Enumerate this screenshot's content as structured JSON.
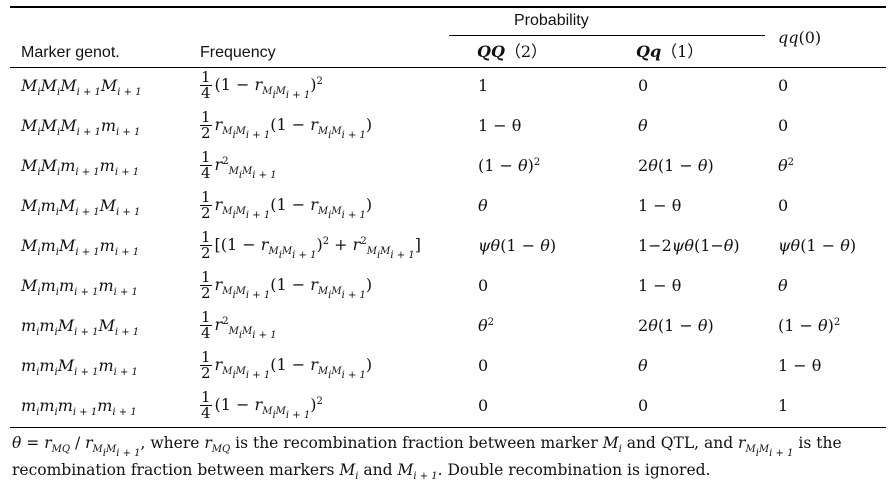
{
  "headers": {
    "marker": "Marker genot.",
    "frequency": "Frequency",
    "probability": "Probability",
    "qq_full": "QQ（2）",
    "qq_sym": "QQ",
    "qq_val": "（2）",
    "qh_sym": "Qq",
    "qh_val": "（1）",
    "q0_sym": "qq",
    "q0_val": "(0)"
  },
  "rows": [
    {
      "genotype": "MiMiMi+1Mi+1",
      "frequency": "1/4 (1 − rMiMi+1)^2",
      "QQ": "1",
      "Qq": "0",
      "qq": "0"
    },
    {
      "genotype": "MiMiMi+1mi+1",
      "frequency": "1/2 rMiMi+1 (1 − rMiMi+1)",
      "QQ": "1 − θ",
      "Qq": "θ",
      "qq": "0"
    },
    {
      "genotype": "MiMimi+1mi+1",
      "frequency": "1/4 r^2MiMi+1",
      "QQ": "(1 − θ)^2",
      "Qq": "2θ(1 − θ)",
      "qq": "θ^2"
    },
    {
      "genotype": "MimiMi+1Mi+1",
      "frequency": "1/2 rMiMi+1 (1 − rMiMi+1)",
      "QQ": "θ",
      "Qq": "1 − θ",
      "qq": "0"
    },
    {
      "genotype": "MimiMi+1mi+1",
      "frequency": "1/2 [(1 − rMiMi+1)^2 + r^2MiMi+1]",
      "QQ": "ψθ(1 − θ)",
      "Qq": "1−2ψθ(1−θ)",
      "qq": "ψθ(1 − θ)"
    },
    {
      "genotype": "Mimimi+1mi+1",
      "frequency": "1/2 rMiMi+1 (1 − rMiMi+1)",
      "QQ": "0",
      "Qq": "1 − θ",
      "qq": "θ"
    },
    {
      "genotype": "mimiMi+1Mi+1",
      "frequency": "1/4 r^2MiMi+1",
      "QQ": "θ^2",
      "Qq": "2θ(1 − θ)",
      "qq": "(1 − θ)^2"
    },
    {
      "genotype": "mimiMi+1mi+1",
      "frequency": "1/2 rMiMi+1 (1 − rMiMi+1)",
      "QQ": "0",
      "Qq": "θ",
      "qq": "1 − θ"
    },
    {
      "genotype": "mimimi+1mi+1",
      "frequency": "1/4 (1 − rMiMi+1)^2",
      "QQ": "0",
      "Qq": "0",
      "qq": "1"
    }
  ],
  "footnote": {
    "line1_a": "θ = r",
    "line1_b": "MQ",
    "line1_c": "/ r",
    "line1_d": ", where ",
    "line1_e": " is the recombination fraction between marker ",
    "line1_f": " and QTL, and ",
    "line1_g": " is the",
    "line2_a": "recombination fraction between markers ",
    "line2_b": " and ",
    "line2_c": ". Double recombination is ignored."
  }
}
